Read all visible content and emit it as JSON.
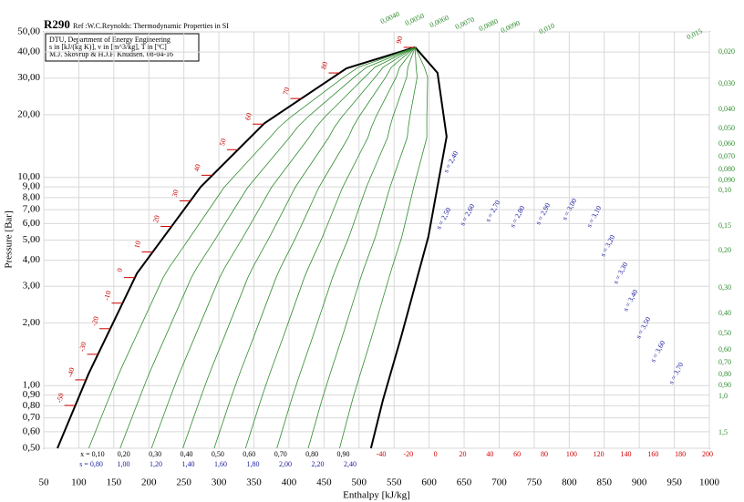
{
  "chart_data": {
    "type": "line",
    "title": "R290",
    "subtitle": "Ref :W.C.Reynolds: Thermodynamic Properties in SI",
    "info": [
      "DTU, Department of Energy Engineering",
      "s in [kJ/(kg K)],  v in [m^3/kg],  T in [ºC]",
      "M.J. Skovrup & H.J.H Knudsen.  08-04-16"
    ],
    "x_label": "Enthalpy [kJ/kg]",
    "y_label": "Pressure [Bar]",
    "log_y": true,
    "grid": true,
    "xlim": [
      50,
      1000
    ],
    "xticks": [
      50,
      100,
      150,
      200,
      250,
      300,
      350,
      400,
      450,
      500,
      550,
      600,
      650,
      700,
      750,
      800,
      850,
      900,
      950,
      1000
    ],
    "ylim": [
      0.5,
      50
    ],
    "yticks": [
      {
        "value": 0.5,
        "label": "0,50"
      },
      {
        "value": 0.6,
        "label": "0,60"
      },
      {
        "value": 0.7,
        "label": "0,70"
      },
      {
        "value": 0.8,
        "label": "0,80"
      },
      {
        "value": 0.9,
        "label": "0,90"
      },
      {
        "value": 1,
        "label": "1,00"
      },
      {
        "value": 2,
        "label": "2,00"
      },
      {
        "value": 3,
        "label": "3,00"
      },
      {
        "value": 4,
        "label": "4,00"
      },
      {
        "value": 5,
        "label": "5,00"
      },
      {
        "value": 6,
        "label": "6,00"
      },
      {
        "value": 7,
        "label": "7,00"
      },
      {
        "value": 8,
        "label": "8,00"
      },
      {
        "value": 9,
        "label": "9,00"
      },
      {
        "value": 10,
        "label": "10,00"
      },
      {
        "value": 20,
        "label": "20,00"
      },
      {
        "value": 30,
        "label": "30,00"
      },
      {
        "value": 40,
        "label": "40,00"
      },
      {
        "value": 50,
        "label": "50,00"
      }
    ],
    "series": [
      {
        "color": "#000000",
        "x": [
          69.5,
          114,
          183,
          274,
          365,
          482,
          580
        ],
        "values": [
          0.5,
          1.14,
          3.46,
          9.0,
          18.2,
          33.4,
          42.2
        ]
      },
      {
        "color": "#000000",
        "x": [
          517,
          534,
          560,
          599,
          625,
          612,
          580
        ],
        "values": [
          0.5,
          0.85,
          1.71,
          5.2,
          15.7,
          31.8,
          42.2
        ]
      }
    ],
    "quality": [
      {
        "value": 0.1,
        "label": "x = 0,10"
      },
      {
        "value": 0.2,
        "label": "0,20"
      },
      {
        "value": 0.3,
        "label": "0,30"
      },
      {
        "value": 0.4,
        "label": "0,40"
      },
      {
        "value": 0.5,
        "label": "0,50"
      },
      {
        "value": 0.6,
        "label": "0,60"
      },
      {
        "value": 0.7,
        "label": "0,70"
      },
      {
        "value": 0.8,
        "label": "0,80"
      },
      {
        "value": 0.9,
        "label": "0,90"
      }
    ],
    "entropy_bottom": [
      "s = 0,80",
      "1,00",
      "1,20",
      "1,40",
      "1,60",
      "1,80",
      "2,00",
      "2,20",
      "2,40"
    ],
    "entropy_inner": [
      "s = 2,40",
      "s = 2,50",
      "s = 2,60",
      "s = 2,70",
      "s = 2,80",
      "s = 2,90",
      "s = 3,00",
      "s = 3,10",
      "s = 3,20",
      "s = 3,30",
      "s = 3,40",
      "s = 3,50",
      "s = 3,60",
      "s = 3,70"
    ],
    "temperature_liquid": [
      -50,
      -40,
      -30,
      -20,
      -10,
      0,
      10,
      20,
      30,
      40,
      50,
      60,
      70,
      80,
      90
    ],
    "temperature_bottom": [
      -40,
      -20,
      0,
      20,
      40,
      60,
      80,
      100,
      120,
      140,
      160,
      180,
      200
    ],
    "volume_top": [
      "0,0040",
      "0,0050",
      "0,0060",
      "0,0070",
      "0,0080",
      "0,0090",
      "0,010",
      "0,015"
    ],
    "volume_right": [
      "0,020",
      "0,030",
      "0,040",
      "0,050",
      "0,060",
      "0,070",
      "0,080",
      "0,090",
      "0,10",
      "0,15",
      "0,20",
      "0,30",
      "0,40",
      "0,50",
      "0,60",
      "0,70",
      "0,80",
      "0,90",
      "1,0",
      "1,5"
    ]
  }
}
